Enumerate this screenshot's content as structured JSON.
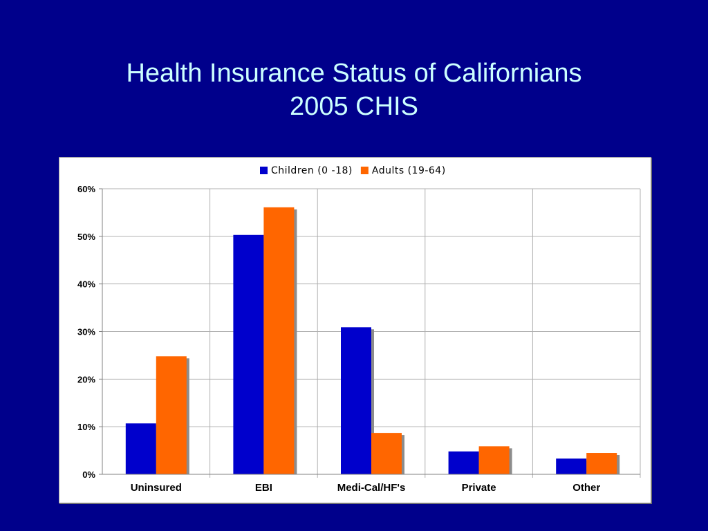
{
  "slide": {
    "title_line1": "Health Insurance Status of Californians",
    "title_line2": "2005 CHIS"
  },
  "chart_data": {
    "type": "bar",
    "categories": [
      "Uninsured",
      "EBI",
      "Medi-Cal/HF's",
      "Private",
      "Other"
    ],
    "series": [
      {
        "name": "Children (0 -18)",
        "values": [
          10.7,
          50.3,
          30.9,
          4.8,
          3.3
        ],
        "color": "#0000CC"
      },
      {
        "name": "Adults (19-64)",
        "values": [
          24.8,
          56.1,
          8.7,
          5.9,
          4.5
        ],
        "color": "#FF6600"
      }
    ],
    "ylim": [
      0,
      60
    ],
    "yticks": [
      "0%",
      "10%",
      "20%",
      "30%",
      "40%",
      "50%",
      "60%"
    ],
    "grid": true,
    "legend_position": "top-center",
    "title": "",
    "xlabel": "",
    "ylabel": ""
  }
}
